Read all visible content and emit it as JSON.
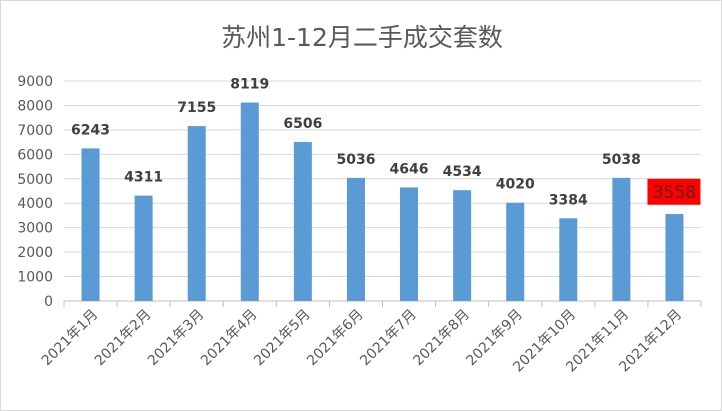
{
  "chart_data": {
    "type": "bar",
    "title": "苏州1-12月二手成交套数",
    "categories": [
      "2021年1月",
      "2021年2月",
      "2021年3月",
      "2021年4月",
      "2021年5月",
      "2021年6月",
      "2021年7月",
      "2021年8月",
      "2021年9月",
      "2021年10月",
      "2021年11月",
      "2021年12月"
    ],
    "values": [
      6243,
      4311,
      7155,
      8119,
      6506,
      5036,
      4646,
      4534,
      4020,
      3384,
      5038,
      3558
    ],
    "data_labels": [
      "6243",
      "4311",
      "7155",
      "8119",
      "6506",
      "5036",
      "4646",
      "4534",
      "4020",
      "3384",
      "5038",
      "3558"
    ],
    "xlabel": "",
    "ylabel": "",
    "ylim": [
      0,
      9000
    ],
    "yticks": [
      "0",
      "1000",
      "2000",
      "3000",
      "4000",
      "5000",
      "6000",
      "7000",
      "8000",
      "9000"
    ],
    "grid": true,
    "legend": "none",
    "bar_color": "#5b9bd5",
    "highlight": {
      "index": 11,
      "label_background": "#ff0000"
    }
  }
}
